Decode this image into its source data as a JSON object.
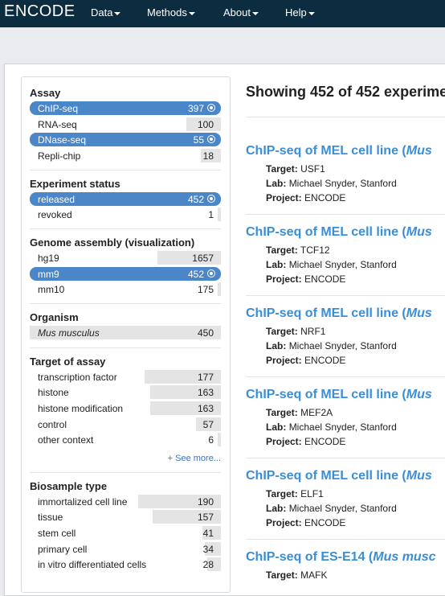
{
  "nav": {
    "brand": "ENCODE",
    "items": [
      "Data",
      "Methods",
      "About",
      "Help"
    ]
  },
  "facets": {
    "assay": {
      "title": "Assay",
      "terms": [
        {
          "label": "ChIP-seq",
          "count": "397",
          "selected": true
        },
        {
          "label": "RNA-seq",
          "count": "100",
          "selected": false
        },
        {
          "label": "DNase-seq",
          "count": "55",
          "selected": true
        },
        {
          "label": "Repli-chip",
          "count": "18",
          "selected": false
        }
      ]
    },
    "status": {
      "title": "Experiment status",
      "terms": [
        {
          "label": "released",
          "count": "452",
          "selected": true
        },
        {
          "label": "revoked",
          "count": "1",
          "selected": false
        }
      ]
    },
    "assembly": {
      "title": "Genome assembly (visualization)",
      "terms": [
        {
          "label": "hg19",
          "count": "1657",
          "selected": false
        },
        {
          "label": "mm9",
          "count": "452",
          "selected": true
        },
        {
          "label": "mm10",
          "count": "175",
          "selected": false
        }
      ]
    },
    "organism": {
      "title": "Organism",
      "terms": [
        {
          "label": "Mus musculus",
          "count": "450",
          "selected": false
        }
      ]
    },
    "target": {
      "title": "Target of assay",
      "terms": [
        {
          "label": "transcription factor",
          "count": "177",
          "selected": false
        },
        {
          "label": "histone",
          "count": "163",
          "selected": false
        },
        {
          "label": "histone modification",
          "count": "163",
          "selected": false
        },
        {
          "label": "control",
          "count": "57",
          "selected": false
        },
        {
          "label": "other context",
          "count": "6",
          "selected": false
        }
      ],
      "see_more": "+ See more..."
    },
    "biosample": {
      "title": "Biosample type",
      "terms": [
        {
          "label": "immortalized cell line",
          "count": "190",
          "selected": false
        },
        {
          "label": "tissue",
          "count": "157",
          "selected": false
        },
        {
          "label": "stem cell",
          "count": "41",
          "selected": false
        },
        {
          "label": "primary cell",
          "count": "34",
          "selected": false
        },
        {
          "label": "in vitro differentiated cells",
          "count": "28",
          "selected": false
        }
      ]
    }
  },
  "results": {
    "heading": "Showing 452 of 452 experime",
    "labels": {
      "target": "Target:",
      "lab": "Lab:",
      "project": "Project:"
    },
    "items": [
      {
        "title": "ChIP-seq of MEL cell line (",
        "organism": "Mus",
        "target": "USF1",
        "lab": "Michael Snyder, Stanford",
        "project": "ENCODE"
      },
      {
        "title": "ChIP-seq of MEL cell line (",
        "organism": "Mus",
        "target": "TCF12",
        "lab": "Michael Snyder, Stanford",
        "project": "ENCODE"
      },
      {
        "title": "ChIP-seq of MEL cell line (",
        "organism": "Mus",
        "target": "NRF1",
        "lab": "Michael Snyder, Stanford",
        "project": "ENCODE"
      },
      {
        "title": "ChIP-seq of MEL cell line (",
        "organism": "Mus",
        "target": "MEF2A",
        "lab": "Michael Snyder, Stanford",
        "project": "ENCODE"
      },
      {
        "title": "ChIP-seq of MEL cell line (",
        "organism": "Mus",
        "target": "ELF1",
        "lab": "Michael Snyder, Stanford",
        "project": "ENCODE"
      },
      {
        "title": "ChIP-seq of ES-E14 (",
        "organism": "Mus musc",
        "target": "MAFK",
        "lab": "",
        "project": ""
      }
    ]
  },
  "colors": {
    "navbar": "#0c2c3f",
    "selected": "#4a86c8",
    "link": "#3a8ed6"
  }
}
